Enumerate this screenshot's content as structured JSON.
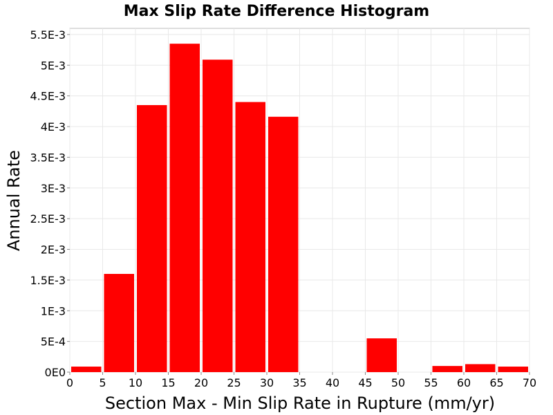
{
  "chart_data": {
    "type": "bar",
    "title": "Max Slip Rate Difference Histogram",
    "xlabel": "Section Max - Min Slip Rate in Rupture (mm/yr)",
    "ylabel": "Annual Rate",
    "xlim": [
      0,
      70
    ],
    "ylim": [
      0,
      0.0056
    ],
    "bin_width": 5,
    "x_ticks": [
      "0",
      "5",
      "10",
      "15",
      "20",
      "25",
      "30",
      "35",
      "40",
      "45",
      "50",
      "55",
      "60",
      "65",
      "70"
    ],
    "y_ticks": [
      "0E0",
      "5E-4",
      "1E-3",
      "1.5E-3",
      "2E-3",
      "2.5E-3",
      "3E-3",
      "3.5E-3",
      "4E-3",
      "4.5E-3",
      "5E-3",
      "5.5E-3"
    ],
    "bin_starts": [
      0,
      5,
      10,
      15,
      20,
      25,
      30,
      35,
      40,
      45,
      50,
      55,
      60,
      65
    ],
    "values": [
      9e-05,
      0.0016,
      0.00435,
      0.00535,
      0.00509,
      0.0044,
      0.00416,
      0,
      0,
      0.00055,
      0,
      0.0001,
      0.00013,
      9e-05
    ],
    "bar_color": "#ff0000",
    "grid": true,
    "legend": false
  }
}
